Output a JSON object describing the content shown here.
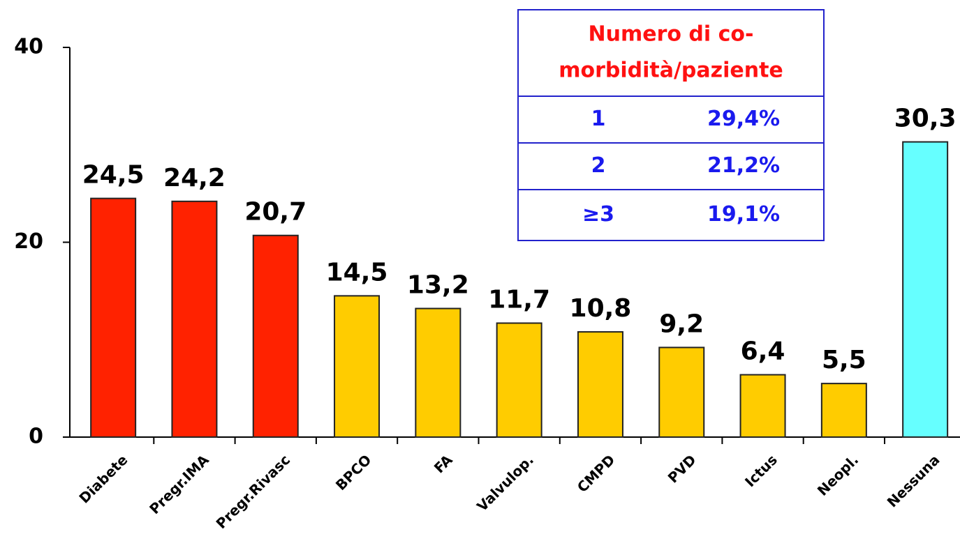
{
  "chart_data": {
    "type": "bar",
    "categories": [
      "Diabete",
      "Pregr.IMA",
      "Pregr.Rivasc",
      "BPCO",
      "FA",
      "Valvulop.",
      "CMPD",
      "PVD",
      "Ictus",
      "Neopl.",
      "Nessuna"
    ],
    "values": [
      24.5,
      24.2,
      20.7,
      14.5,
      13.2,
      11.7,
      10.8,
      9.2,
      6.4,
      5.5,
      30.3
    ],
    "value_labels": [
      "24,5",
      "24,2",
      "20,7",
      "14,5",
      "13,2",
      "11,7",
      "10,8",
      "9,2",
      "6,4",
      "5,5",
      "30,3"
    ],
    "colors": [
      "#ff2200",
      "#ff2200",
      "#ff2200",
      "#ffcc00",
      "#ffcc00",
      "#ffcc00",
      "#ffcc00",
      "#ffcc00",
      "#ffcc00",
      "#ffcc00",
      "#66ffff"
    ],
    "ylim": [
      0,
      40
    ],
    "yticks": [
      0,
      20,
      40
    ],
    "inset_table": {
      "title_lines": [
        "Numero di co-",
        "morbidità/paziente"
      ],
      "rows": [
        [
          "1",
          "29,4%"
        ],
        [
          "2",
          "21,2%"
        ],
        [
          "≥3",
          "19,1%"
        ]
      ]
    }
  }
}
